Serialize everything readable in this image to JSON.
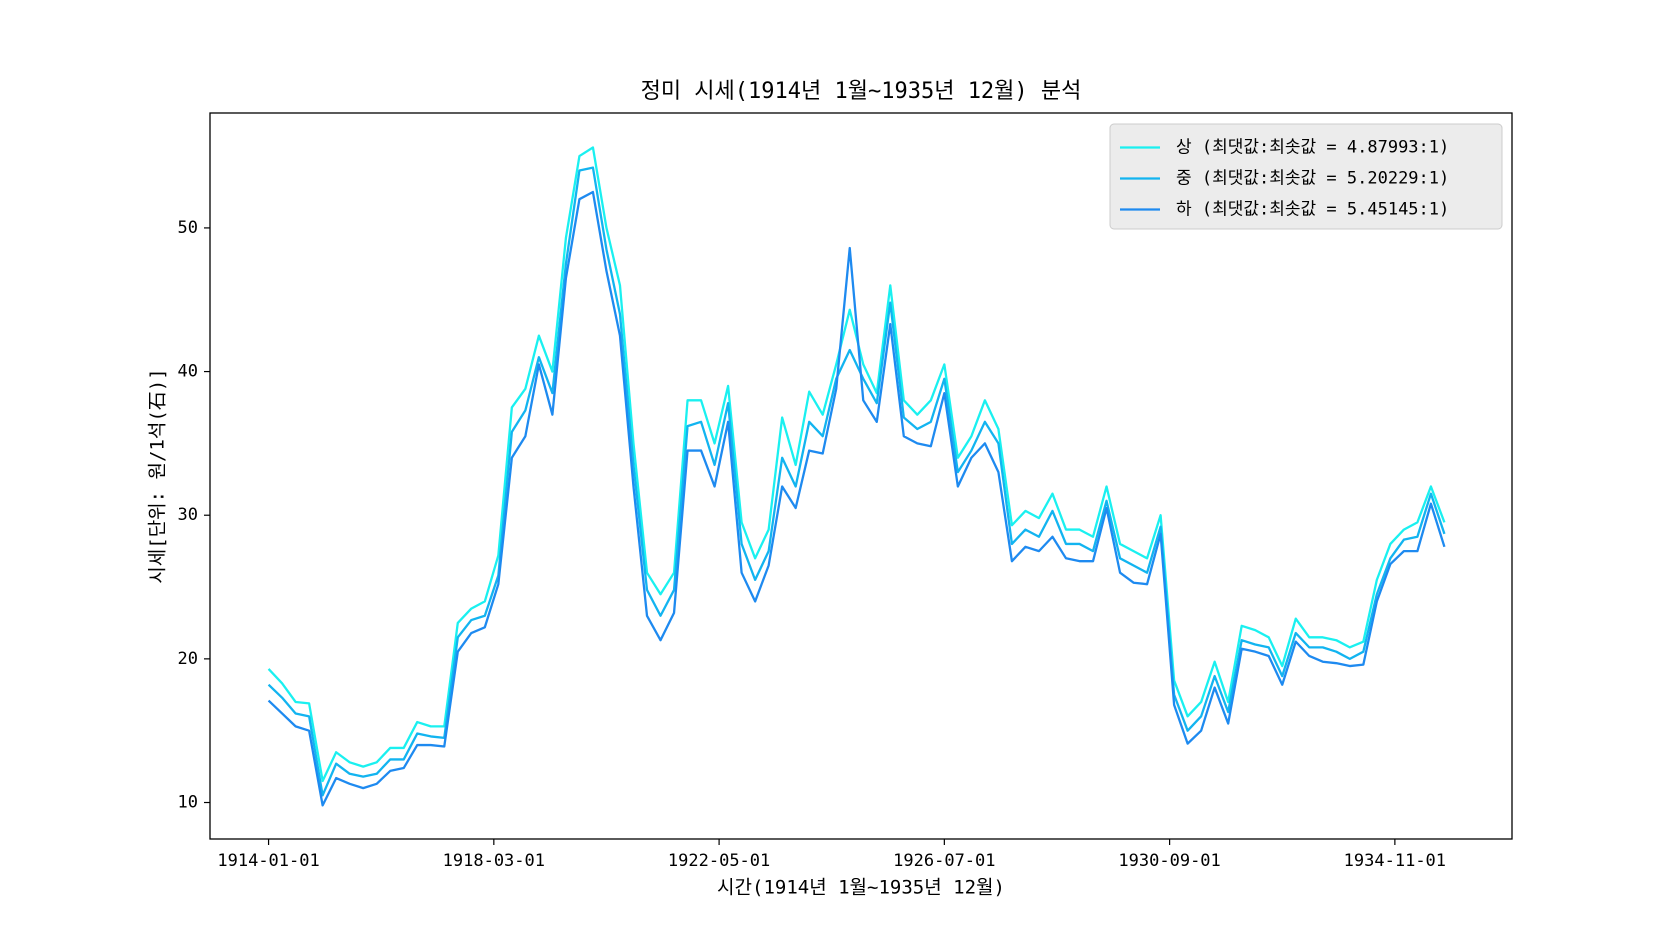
{
  "chart_data": {
    "type": "line",
    "title": "정미 시세(1914년 1월~1935년 12월) 분석",
    "xlabel": "시간(1914년 1월~1935년 12월)",
    "ylabel": "시세[단위: 원/1석(石)]",
    "x": [
      "1914-01-01",
      "1914-04-01",
      "1914-07-01",
      "1914-10-01",
      "1915-01-01",
      "1915-04-01",
      "1915-07-01",
      "1915-10-01",
      "1916-01-01",
      "1916-04-01",
      "1916-07-01",
      "1916-10-01",
      "1917-01-01",
      "1917-04-01",
      "1917-07-01",
      "1917-10-01",
      "1918-01-01",
      "1918-04-01",
      "1918-07-01",
      "1918-10-01",
      "1919-01-01",
      "1919-04-01",
      "1919-07-01",
      "1919-10-01",
      "1920-01-01",
      "1920-04-01",
      "1920-07-01",
      "1920-10-01",
      "1921-01-01",
      "1921-04-01",
      "1921-07-01",
      "1921-10-01",
      "1922-01-01",
      "1922-04-01",
      "1922-07-01",
      "1922-10-01",
      "1923-01-01",
      "1923-04-01",
      "1923-07-01",
      "1923-10-01",
      "1924-01-01",
      "1924-04-01",
      "1924-07-01",
      "1924-10-01",
      "1925-01-01",
      "1925-04-01",
      "1925-07-01",
      "1925-10-01",
      "1926-01-01",
      "1926-04-01",
      "1926-07-01",
      "1926-10-01",
      "1927-01-01",
      "1927-04-01",
      "1927-07-01",
      "1927-10-01",
      "1928-01-01",
      "1928-04-01",
      "1928-07-01",
      "1928-10-01",
      "1929-01-01",
      "1929-04-01",
      "1929-07-01",
      "1929-10-01",
      "1930-01-01",
      "1930-04-01",
      "1930-07-01",
      "1930-10-01",
      "1931-01-01",
      "1931-04-01",
      "1931-07-01",
      "1931-10-01",
      "1932-01-01",
      "1932-04-01",
      "1932-07-01",
      "1932-10-01",
      "1933-01-01",
      "1933-04-01",
      "1933-07-01",
      "1933-10-01",
      "1934-01-01",
      "1934-04-01",
      "1934-07-01",
      "1934-10-01",
      "1935-01-01",
      "1935-04-01",
      "1935-07-01",
      "1935-10-01"
    ],
    "series": [
      {
        "name": "상 (최댓값:최솟값 = 4.87993:1)",
        "color": "#1af0f0",
        "values": [
          19.3,
          18.3,
          17.0,
          16.9,
          11.5,
          13.5,
          12.8,
          12.5,
          12.8,
          13.8,
          13.8,
          15.6,
          15.3,
          15.3,
          22.5,
          23.5,
          24.0,
          27.2,
          37.5,
          38.8,
          42.5,
          40.0,
          49.3,
          55.0,
          55.6,
          50.0,
          46.0,
          35.0,
          26.0,
          24.5,
          26.0,
          38.0,
          38.0,
          35.0,
          39.0,
          29.5,
          27.0,
          29.0,
          36.8,
          33.5,
          38.6,
          37.0,
          40.5,
          44.3,
          40.5,
          38.5,
          46.0,
          38.0,
          37.0,
          38.0,
          40.5,
          34.0,
          35.5,
          38.0,
          36.0,
          29.3,
          30.3,
          29.8,
          31.5,
          29.0,
          29.0,
          28.5,
          32.0,
          28.0,
          27.5,
          27.0,
          30.0,
          18.5,
          16.0,
          17.0,
          19.8,
          17.0,
          22.3,
          22.0,
          21.5,
          19.5,
          22.8,
          21.5,
          21.5,
          21.3,
          20.8,
          21.2,
          25.5,
          28.0,
          29.0,
          29.5,
          32.0,
          29.5
        ]
      },
      {
        "name": "중 (최댓값:최솟값 = 5.20229:1)",
        "color": "#12b4f0",
        "values": [
          18.2,
          17.3,
          16.2,
          16.0,
          10.5,
          12.7,
          12.0,
          11.8,
          12.0,
          13.0,
          13.0,
          14.8,
          14.6,
          14.5,
          21.5,
          22.7,
          23.0,
          25.8,
          35.8,
          37.3,
          41.0,
          38.5,
          47.5,
          54.0,
          54.2,
          48.5,
          44.0,
          33.5,
          24.8,
          23.0,
          24.8,
          36.2,
          36.5,
          33.5,
          37.8,
          28.0,
          25.5,
          27.5,
          34.0,
          32.0,
          36.5,
          35.5,
          39.5,
          41.5,
          39.5,
          37.8,
          44.8,
          36.8,
          36.0,
          36.5,
          39.5,
          33.0,
          34.5,
          36.5,
          35.0,
          28.0,
          29.0,
          28.5,
          30.3,
          28.0,
          28.0,
          27.5,
          31.0,
          27.0,
          26.5,
          26.0,
          29.2,
          17.5,
          15.0,
          16.0,
          18.8,
          16.3,
          21.3,
          21.0,
          20.8,
          18.8,
          21.8,
          20.8,
          20.8,
          20.5,
          20.0,
          20.5,
          24.5,
          27.0,
          28.3,
          28.5,
          31.5,
          28.7
        ]
      },
      {
        "name": "하 (최댓값:최솟값 = 5.45145:1)",
        "color": "#1e8af0",
        "values": [
          17.1,
          16.2,
          15.3,
          15.0,
          9.8,
          11.7,
          11.3,
          11.0,
          11.3,
          12.2,
          12.4,
          14.0,
          14.0,
          13.9,
          20.5,
          21.8,
          22.2,
          25.2,
          34.0,
          35.5,
          40.5,
          37.0,
          46.5,
          52.0,
          52.5,
          47.0,
          42.5,
          32.0,
          23.0,
          21.3,
          23.2,
          34.5,
          34.5,
          32.0,
          36.5,
          26.0,
          24.0,
          26.5,
          32.0,
          30.5,
          34.5,
          34.3,
          38.8,
          48.6,
          38.0,
          36.5,
          43.3,
          35.5,
          35.0,
          34.8,
          38.5,
          32.0,
          34.0,
          35.0,
          33.0,
          26.8,
          27.8,
          27.5,
          28.5,
          27.0,
          26.8,
          26.8,
          30.5,
          26.0,
          25.3,
          25.2,
          28.7,
          16.8,
          14.1,
          15.0,
          18.0,
          15.5,
          20.7,
          20.5,
          20.2,
          18.2,
          21.2,
          20.2,
          19.8,
          19.7,
          19.5,
          19.6,
          24.0,
          26.6,
          27.5,
          27.5,
          30.8,
          27.8
        ]
      }
    ],
    "xlim": [
      "1912-12-01",
      "1937-01-01"
    ],
    "xticks": [
      "1914-01-01",
      "1918-03-01",
      "1922-05-01",
      "1926-07-01",
      "1930-09-01",
      "1934-11-01"
    ],
    "ylim": [
      7.46,
      58
    ],
    "yticks": [
      10,
      20,
      30,
      40,
      50
    ],
    "grid": false,
    "legend": "upper right"
  }
}
